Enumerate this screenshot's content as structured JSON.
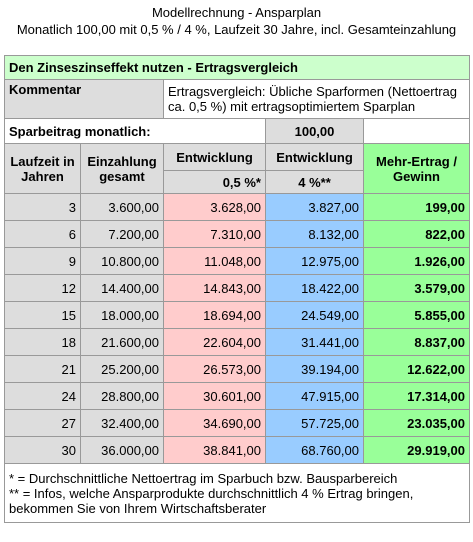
{
  "header": {
    "title": "Modellrechnung - Ansparplan",
    "subtitle": "Monatlich 100,00 mit 0,5 % / 4 %, Laufzeit 30 Jahre, incl. Gesamteinzahlung"
  },
  "table": {
    "section_title": "Den Zinseszinseffekt nutzen - Ertragsvergleich",
    "comment_label": "Kommentar",
    "comment_text": "Ertragsvergleich: Übliche Sparformen (Nettoertrag ca. 0,5 %) mit ertragsoptimiertem Sparplan",
    "rate_label": "Sparbeitrag monatlich:",
    "rate_value": "100,00",
    "columns": [
      "Laufzeit in Jahren",
      "Einzahlung gesamt",
      "Entwicklung",
      "Entwicklung",
      "Mehr-Ertrag / Gewinn"
    ],
    "subcolumns": [
      "0,5 %*",
      "4 %**"
    ],
    "rows": [
      [
        "3",
        "3.600,00",
        "3.628,00",
        "3.827,00",
        "199,00"
      ],
      [
        "6",
        "7.200,00",
        "7.310,00",
        "8.132,00",
        "822,00"
      ],
      [
        "9",
        "10.800,00",
        "11.048,00",
        "12.975,00",
        "1.926,00"
      ],
      [
        "12",
        "14.400,00",
        "14.843,00",
        "18.422,00",
        "3.579,00"
      ],
      [
        "15",
        "18.000,00",
        "18.694,00",
        "24.549,00",
        "5.855,00"
      ],
      [
        "18",
        "21.600,00",
        "22.604,00",
        "31.441,00",
        "8.837,00"
      ],
      [
        "21",
        "25.200,00",
        "26.573,00",
        "39.194,00",
        "12.622,00"
      ],
      [
        "24",
        "28.800,00",
        "30.601,00",
        "47.915,00",
        "17.314,00"
      ],
      [
        "27",
        "32.400,00",
        "34.690,00",
        "57.725,00",
        "23.035,00"
      ],
      [
        "30",
        "36.000,00",
        "38.841,00",
        "68.760,00",
        "29.919,00"
      ]
    ],
    "footnotes": [
      "* = Durchschnittliche Nettoertrag im Sparbuch bzw. Bausparbereich",
      "** = Infos, welche Ansparprodukte durchschnittlich 4 % Ertrag bringen, bekommen Sie von Ihrem Wirtschaftsberater"
    ]
  }
}
